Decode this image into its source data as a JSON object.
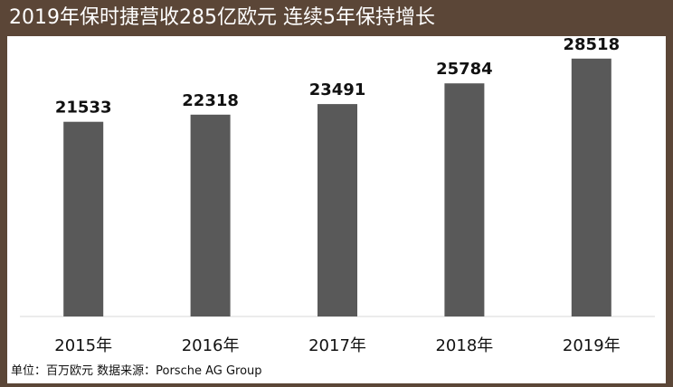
{
  "title": "2019年保时捷营收285亿欧元 连续5年保持增长",
  "source_note": "单位：百万欧元  数据来源：Porsche AG Group",
  "colors": {
    "frame": "#5b4637",
    "bar": "#595959",
    "axis": "#d9d9d9",
    "label": "#111111"
  },
  "chart_data": {
    "type": "bar",
    "categories": [
      "2015年",
      "2016年",
      "2017年",
      "2018年",
      "2019年"
    ],
    "values": [
      21533,
      22318,
      23491,
      25784,
      28518
    ],
    "title": "2019年保时捷营收285亿欧元 连续5年保持增长",
    "xlabel": "",
    "ylabel": "",
    "ylim": [
      0,
      31000
    ],
    "grid": false,
    "data_labels": true,
    "unit": "单位：百万欧元"
  }
}
